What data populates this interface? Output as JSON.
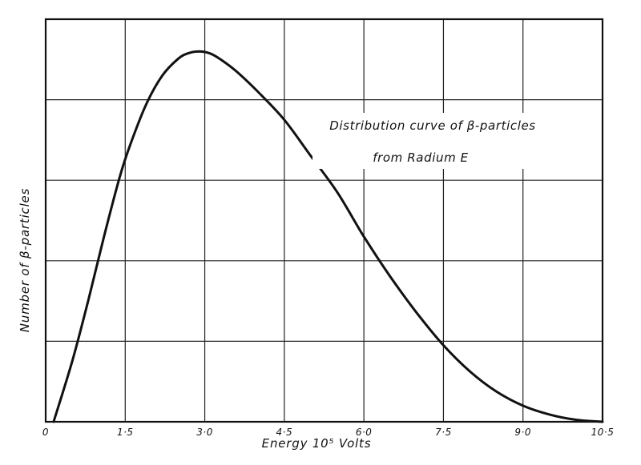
{
  "chart_data": {
    "type": "line",
    "title_lines": [
      "Distribution curve of β-particles",
      "from Radium E"
    ],
    "xlabel": "Energy 10⁵ Volts",
    "ylabel": "Number of β-particles",
    "xlim": [
      0,
      10.5
    ],
    "ylim": [
      0,
      10
    ],
    "x_ticks": [
      0,
      1.5,
      3.0,
      4.5,
      6.0,
      7.5,
      9.0,
      10.5
    ],
    "x_tick_labels": [
      "0",
      "1·5",
      "3·0",
      "4·5",
      "6·0",
      "7·5",
      "9·0",
      "10·5"
    ],
    "y_gridlines": [
      2,
      4,
      6,
      8
    ],
    "grid": true,
    "series": [
      {
        "x": [
          0.15,
          0.5,
          0.8,
          1.1,
          1.4,
          1.6,
          1.9,
          2.2,
          2.5,
          2.7,
          2.9,
          3.1,
          3.3,
          3.6,
          4.0,
          4.5,
          5.0,
          5.5,
          6.0,
          6.5,
          7.0,
          7.5,
          8.0,
          8.5,
          9.0,
          9.5,
          10.0,
          10.5
        ],
        "y": [
          0.0,
          1.5,
          3.0,
          4.6,
          6.1,
          6.9,
          7.9,
          8.6,
          9.02,
          9.16,
          9.2,
          9.15,
          9.0,
          8.7,
          8.2,
          7.5,
          6.6,
          5.7,
          4.6,
          3.6,
          2.7,
          1.9,
          1.25,
          0.75,
          0.4,
          0.18,
          0.05,
          0.0
        ]
      }
    ]
  }
}
